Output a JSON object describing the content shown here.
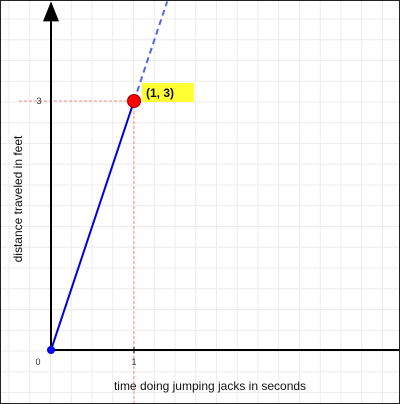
{
  "chart_data": {
    "type": "line",
    "title": "",
    "xlabel": "time doing jumping jacks in seconds",
    "ylabel": "distance traveled in feet",
    "x_ticks": [
      {
        "value": 0,
        "label": "0"
      },
      {
        "value": 1,
        "label": "1"
      }
    ],
    "y_ticks": [
      {
        "value": 3,
        "label": "3"
      }
    ],
    "xlim": [
      -0.55,
      4.4
    ],
    "ylim": [
      -0.3,
      4.2
    ],
    "grid": true,
    "series": [
      {
        "values_xy": [
          [
            0,
            0
          ],
          [
            1,
            3
          ]
        ],
        "color": "#0000dd",
        "style": "solid"
      }
    ],
    "extension": {
      "from": [
        1,
        3
      ],
      "to": [
        1.4,
        4.2
      ],
      "color": "#5566ee",
      "style": "dashed"
    },
    "origin_point": {
      "x": 0,
      "y": 0,
      "color": "#0000ff"
    },
    "highlight_point": {
      "x": 1,
      "y": 3,
      "label": "(1, 3)",
      "color": "#ff0000",
      "label_bg": "#ffff33"
    },
    "guide_color": "#ff8888",
    "axis_color": "#000000"
  }
}
